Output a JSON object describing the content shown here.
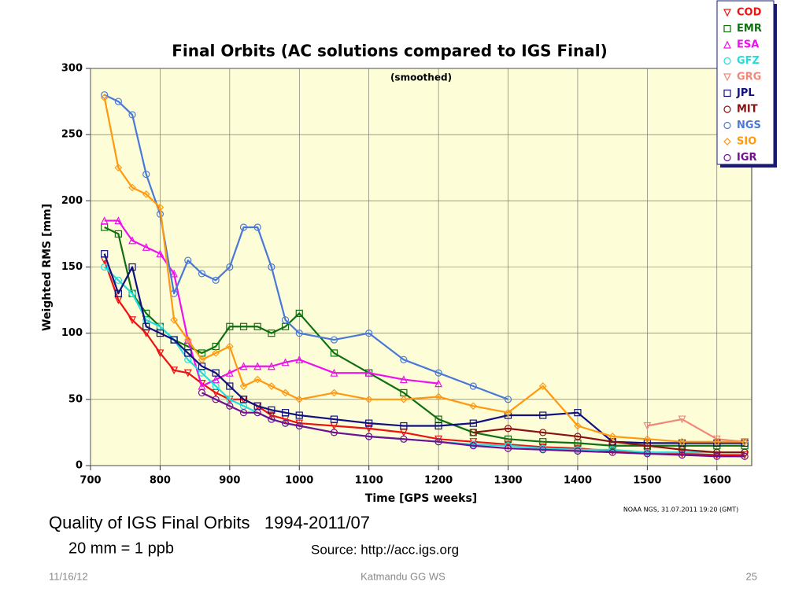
{
  "chart_data": {
    "type": "line",
    "title": "Final Orbits (AC solutions compared to IGS Final)",
    "subtitle": "(smoothed)",
    "x_label": "Time [GPS weeks]",
    "y_label": "Weighted RMS [mm]",
    "note": "NOAA NGS, 31.07.2011 19:20 (GMT)",
    "xlim": [
      700,
      1650
    ],
    "ylim": [
      0,
      300
    ],
    "xticks": [
      700,
      800,
      900,
      1000,
      1100,
      1200,
      1300,
      1400,
      1500,
      1600
    ],
    "yticks": [
      0,
      50,
      100,
      150,
      200,
      250,
      300
    ],
    "grid": true,
    "legend": "top-right",
    "x": [
      720,
      740,
      760,
      780,
      800,
      820,
      840,
      860,
      880,
      900,
      920,
      940,
      960,
      980,
      1000,
      1050,
      1100,
      1150,
      1200,
      1250,
      1300,
      1350,
      1400,
      1450,
      1500,
      1550,
      1600,
      1640
    ],
    "series": [
      {
        "name": "COD",
        "color": "#ee1111",
        "marker": "triangle-down",
        "values": [
          155,
          125,
          110,
          100,
          85,
          72,
          70,
          62,
          55,
          50,
          50,
          45,
          38,
          35,
          32,
          30,
          28,
          25,
          20,
          18,
          16,
          14,
          13,
          11,
          10,
          9,
          8,
          8
        ]
      },
      {
        "name": "EMR",
        "color": "#107010",
        "marker": "square",
        "values": [
          180,
          175,
          130,
          115,
          105,
          95,
          90,
          85,
          90,
          105,
          105,
          105,
          100,
          105,
          115,
          85,
          70,
          55,
          35,
          25,
          20,
          18,
          17,
          15,
          15,
          15,
          15,
          15
        ]
      },
      {
        "name": "ESA",
        "color": "#ee11ee",
        "marker": "triangle-up",
        "values": [
          185,
          185,
          170,
          165,
          160,
          145,
          95,
          60,
          65,
          70,
          75,
          75,
          75,
          78,
          80,
          70,
          70,
          65,
          62,
          null,
          null,
          null,
          null,
          null,
          null,
          null,
          null,
          null
        ]
      },
      {
        "name": "GFZ",
        "color": "#22dddd",
        "marker": "circle",
        "values": [
          150,
          140,
          130,
          110,
          105,
          95,
          80,
          70,
          60,
          50,
          45,
          40,
          35,
          32,
          30,
          25,
          22,
          20,
          18,
          16,
          15,
          13,
          12,
          12,
          10,
          10,
          10,
          10
        ]
      },
      {
        "name": "GRG",
        "color": "#f08878",
        "marker": "triangle-down",
        "values": [
          null,
          null,
          null,
          null,
          null,
          null,
          null,
          null,
          null,
          null,
          null,
          null,
          null,
          null,
          null,
          null,
          null,
          null,
          null,
          null,
          null,
          null,
          null,
          null,
          30,
          35,
          20,
          18
        ]
      },
      {
        "name": "JPL",
        "color": "#101080",
        "marker": "square",
        "values": [
          160,
          130,
          150,
          105,
          100,
          95,
          85,
          75,
          70,
          60,
          50,
          45,
          42,
          40,
          38,
          35,
          32,
          30,
          30,
          32,
          38,
          38,
          40,
          18,
          17,
          17,
          17,
          17
        ]
      },
      {
        "name": "MIT",
        "color": "#8b1010",
        "marker": "circle",
        "values": [
          null,
          null,
          null,
          null,
          null,
          null,
          null,
          null,
          null,
          null,
          null,
          null,
          null,
          null,
          null,
          null,
          null,
          null,
          null,
          25,
          28,
          25,
          22,
          18,
          15,
          12,
          10,
          10
        ]
      },
      {
        "name": "NGS",
        "color": "#4a78d8",
        "marker": "circle",
        "values": [
          280,
          275,
          265,
          220,
          190,
          130,
          155,
          145,
          140,
          150,
          180,
          180,
          150,
          110,
          100,
          95,
          100,
          80,
          70,
          60,
          50,
          null,
          null,
          null,
          null,
          null,
          null,
          null
        ]
      },
      {
        "name": "SIO",
        "color": "#ff9910",
        "marker": "diamond",
        "values": [
          278,
          225,
          210,
          205,
          195,
          110,
          95,
          80,
          85,
          90,
          60,
          65,
          60,
          55,
          50,
          55,
          50,
          50,
          52,
          45,
          40,
          60,
          30,
          22,
          20,
          18,
          18,
          18
        ]
      },
      {
        "name": "IGR",
        "color": "#701090",
        "marker": "circle",
        "values": [
          null,
          null,
          null,
          null,
          null,
          null,
          null,
          55,
          50,
          45,
          40,
          40,
          35,
          32,
          30,
          25,
          22,
          20,
          18,
          15,
          13,
          12,
          11,
          10,
          9,
          8,
          7,
          7
        ]
      }
    ]
  },
  "slide": {
    "heading": "Quality of IGS Final Orbits   1994-2011/07",
    "conversion": "20 mm = 1 ppb",
    "source": "Source: http://acc.igs.org",
    "date": "11/16/12",
    "event": "Katmandu GG WS",
    "page": "25"
  }
}
